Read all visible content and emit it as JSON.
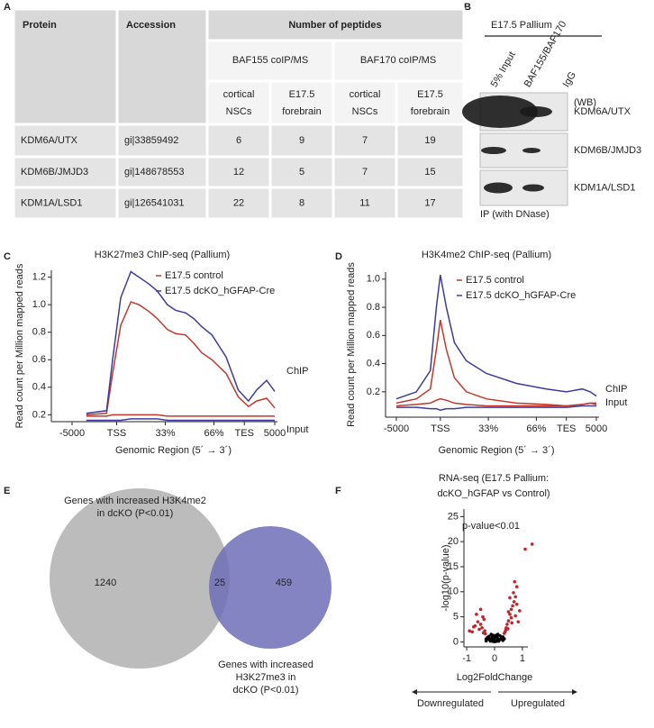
{
  "panel_labels": [
    "A",
    "B",
    "C",
    "D",
    "E",
    "F"
  ],
  "table": {
    "headers": [
      "Protein",
      "Accession",
      "Number of peptides"
    ],
    "groups": [
      "BAF155 coIP/MS",
      "BAF170 coIP/MS"
    ],
    "subheaders": [
      [
        "cortical",
        "NSCs"
      ],
      [
        "E17.5",
        "forebrain"
      ],
      [
        "cortical",
        "NSCs"
      ],
      [
        "E17.5",
        "forebrain"
      ]
    ],
    "rows": [
      [
        "KDM6A/UTX",
        "gi|33859492",
        6,
        9,
        7,
        19
      ],
      [
        "KDM6B/JMJD3",
        "gi|148678553",
        12,
        5,
        7,
        15
      ],
      [
        "KDM1A/LSD1",
        "gi|126541031",
        22,
        8,
        11,
        17
      ]
    ]
  },
  "blot": {
    "title": "E17.5 Pallium",
    "lanes": [
      "5% Input",
      "BAF155/BAF170",
      "IgG"
    ],
    "wb": "(WB)",
    "proteins": [
      "KDM6A/UTX",
      "KDM6B/JMJD3",
      "KDM1A/LSD1"
    ],
    "footer": "IP (with DNase)"
  },
  "chart_data": [
    {
      "type": "line",
      "title": "H3K27me3 ChIP-seq (Pallium)",
      "ylabel": "Read count per Million mapped reads",
      "xlabel": "Genomic Region (5´ → 3´)",
      "annotations": [
        "ChIP",
        "Input"
      ],
      "xlim": [
        0,
        100
      ],
      "xticks": [
        {
          "value": 0,
          "label": "-5000"
        },
        {
          "value": 22,
          "label": "TSS"
        },
        {
          "value": 46,
          "label": "33%"
        },
        {
          "value": 70,
          "label": "66%"
        },
        {
          "value": 85,
          "label": "TES"
        },
        {
          "value": 100,
          "label": "5000"
        }
      ],
      "ylim": [
        0.15,
        1.25
      ],
      "yticks": [
        0.2,
        0.4,
        0.6,
        0.8,
        {
          "value": 1,
          "label": "1.0"
        },
        1.2
      ],
      "x": [
        7,
        17,
        20,
        24,
        29,
        33,
        38,
        42,
        47,
        51,
        56,
        60,
        64,
        69,
        76,
        82,
        87,
        91,
        96,
        100
      ],
      "series": [
        {
          "name": "E17.5 control",
          "color": "#c0392b",
          "values": [
            0.2,
            0.21,
            0.5,
            0.85,
            1.02,
            1.0,
            0.95,
            0.9,
            0.82,
            0.79,
            0.78,
            0.72,
            0.65,
            0.6,
            0.5,
            0.33,
            0.26,
            0.3,
            0.32,
            0.25
          ],
          "input_values": [
            0.19,
            0.19,
            0.2,
            0.2,
            0.2,
            0.2,
            0.2,
            0.2,
            0.19,
            0.19,
            0.19,
            0.19,
            0.19,
            0.19,
            0.19,
            0.19,
            0.19,
            0.19,
            0.19,
            0.19
          ]
        },
        {
          "name": "E17.5 dcKO_hGFAP-Cre",
          "color": "#3c3c9c",
          "values": [
            0.21,
            0.23,
            0.6,
            1.05,
            1.24,
            1.2,
            1.15,
            1.1,
            1.0,
            0.96,
            0.94,
            0.9,
            0.84,
            0.78,
            0.62,
            0.38,
            0.3,
            0.38,
            0.45,
            0.37
          ],
          "input_values": [
            0.16,
            0.16,
            0.16,
            0.16,
            0.17,
            0.17,
            0.17,
            0.17,
            0.16,
            0.16,
            0.16,
            0.16,
            0.16,
            0.16,
            0.16,
            0.16,
            0.16,
            0.16,
            0.16,
            0.16
          ]
        }
      ]
    },
    {
      "type": "line",
      "title": "H3K4me2 ChIP-seq (Pallium)",
      "ylabel": "Read count per Million mapped reads",
      "xlabel": "Genomic Region (5´ → 3´)",
      "annotations": [
        "ChIP",
        "Input"
      ],
      "xlim": [
        0,
        100
      ],
      "xticks": [
        {
          "value": 0,
          "label": "-5000"
        },
        {
          "value": 22,
          "label": "TSS"
        },
        {
          "value": 46,
          "label": "33%"
        },
        {
          "value": 70,
          "label": "66%"
        },
        {
          "value": 85,
          "label": "TES"
        },
        {
          "value": 100,
          "label": "5000"
        }
      ],
      "ylim": [
        0.02,
        1.05
      ],
      "yticks": [
        0.2,
        0.4,
        0.6,
        0.8,
        {
          "value": 1,
          "label": "1.0"
        }
      ],
      "x": [
        0,
        10,
        17,
        20,
        22,
        25,
        29,
        35,
        45,
        60,
        75,
        85,
        93,
        97,
        100
      ],
      "series": [
        {
          "name": "E17.5 control",
          "color": "#c0392b",
          "values": [
            0.12,
            0.15,
            0.22,
            0.5,
            0.71,
            0.5,
            0.3,
            0.2,
            0.15,
            0.12,
            0.11,
            0.1,
            0.11,
            0.12,
            0.11
          ],
          "input_values": [
            0.1,
            0.11,
            0.12,
            0.14,
            0.15,
            0.14,
            0.12,
            0.11,
            0.1,
            0.1,
            0.1,
            0.1,
            0.11,
            0.12,
            0.12
          ]
        },
        {
          "name": "E17.5 dcKO_hGFAP-Cre",
          "color": "#3c3c9c",
          "values": [
            0.15,
            0.2,
            0.35,
            0.8,
            1.03,
            0.8,
            0.55,
            0.42,
            0.33,
            0.26,
            0.22,
            0.2,
            0.22,
            0.2,
            0.17
          ],
          "input_values": [
            0.09,
            0.09,
            0.08,
            0.08,
            0.07,
            0.08,
            0.08,
            0.09,
            0.09,
            0.09,
            0.09,
            0.09,
            0.1,
            0.1,
            0.1
          ]
        }
      ]
    },
    {
      "type": "scatter",
      "title": [
        "RNA-seq (E17.5 Pallium:",
        "dcKO_hGFAP vs Control)"
      ],
      "ylabel": "-log10(p-value)",
      "xlabel": "Log2FoldChange",
      "annotation": "p-value<0.01",
      "directions": [
        "Downregulated",
        "Upregulated"
      ],
      "xlim": [
        -1.1,
        1.1
      ],
      "xticks": [
        -1,
        0,
        1
      ],
      "ylim": [
        -1,
        26.5
      ],
      "yticks": [
        0,
        5,
        10,
        15,
        20,
        25
      ],
      "series": [
        {
          "color": "#000000",
          "x": [
            -0.3,
            -0.25,
            -0.2,
            -0.15,
            -0.1,
            -0.05,
            0,
            0.05,
            0.1,
            0.15,
            0.2,
            0.25,
            0.3,
            -0.2,
            -0.1,
            0,
            0.1,
            0.2,
            -0.15,
            0.15,
            0,
            -0.05,
            0.05,
            -0.3,
            0.3,
            0.12,
            -0.12,
            0.08,
            -0.08,
            0.35
          ],
          "values": [
            0.6,
            0.9,
            0.5,
            0.3,
            0.2,
            0.1,
            0.05,
            0.1,
            0.2,
            0.35,
            0.5,
            0.8,
            1.0,
            1.1,
            0.7,
            0.4,
            0.8,
            1.2,
            0.15,
            0.15,
            0.9,
            1.3,
            1.3,
            0.2,
            0.3,
            1.5,
            1.5,
            1.0,
            1.0,
            0.6
          ]
        },
        {
          "color": "#c0272d",
          "x": [
            -0.9,
            -0.75,
            -0.6,
            -0.55,
            -0.5,
            -0.45,
            -0.4,
            -0.38,
            -0.35,
            -0.65,
            -0.7,
            -0.5,
            -0.42,
            -0.8,
            -0.33,
            0.35,
            0.4,
            0.45,
            0.5,
            0.55,
            0.6,
            0.65,
            0.7,
            0.75,
            0.8,
            0.42,
            0.5,
            0.6,
            0.68,
            0.72,
            0.55,
            0.8,
            0.9,
            0.38,
            0.48,
            0.62,
            0.75,
            1.1,
            1.35,
            0.85
          ],
          "values": [
            2.2,
            3,
            4,
            2.5,
            3.5,
            2.8,
            1.8,
            4.5,
            2.2,
            5.5,
            3.2,
            6.5,
            5,
            2,
            1.6,
            1.7,
            2.4,
            3.5,
            4.2,
            5.5,
            6.5,
            7.2,
            8,
            9,
            7.5,
            2.8,
            6,
            4.8,
            9.8,
            12,
            8.8,
            11,
            6.2,
            2,
            2.6,
            3.8,
            5.2,
            18.5,
            19.5,
            4
          ]
        }
      ]
    }
  ],
  "venn": {
    "sets": [
      {
        "label": [
          "Genes with increased H3K4me2",
          "in dcKO (P<0.01)"
        ],
        "count": 1240
      },
      {
        "label": [
          "Genes with increased",
          "H3K27me3  in",
          "dcKO (P<0.01)"
        ],
        "count": 459
      }
    ],
    "overlap": 25
  }
}
